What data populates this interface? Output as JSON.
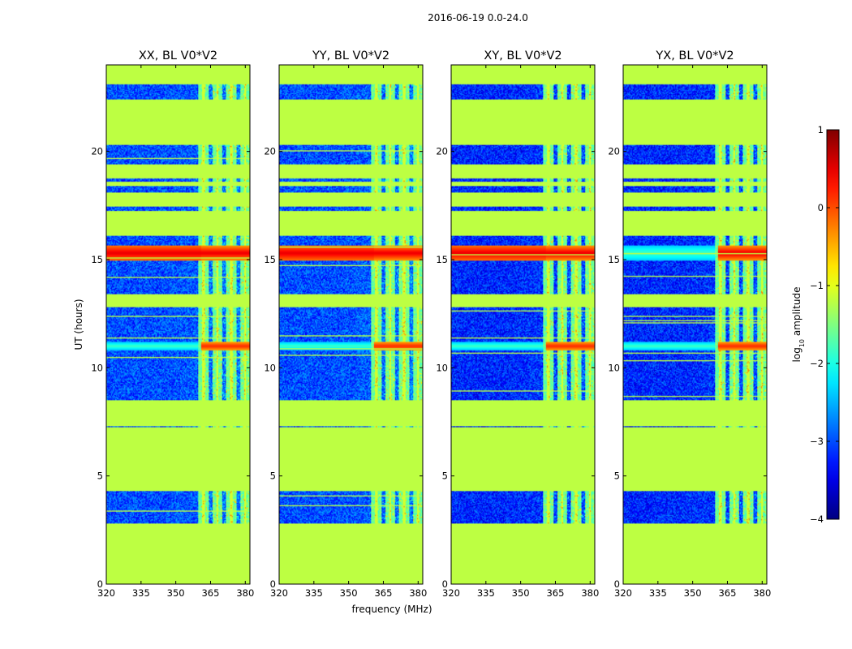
{
  "chart_data": {
    "type": "heatmap",
    "suptitle": "2016-06-19 0.0-24.0",
    "xlabel": "frequency (MHz)",
    "ylabel": "UT (hours)",
    "xlim": [
      320,
      382
    ],
    "ylim": [
      0,
      24
    ],
    "xticks": [
      "320",
      "335",
      "350",
      "365",
      "380"
    ],
    "yticks": [
      "0",
      "5",
      "10",
      "15",
      "20"
    ],
    "panels": [
      {
        "title": "XX, BL V0*V2",
        "pol": "XX"
      },
      {
        "title": "YY, BL V0*V2",
        "pol": "YY"
      },
      {
        "title": "XY, BL V0*V2",
        "pol": "XY"
      },
      {
        "title": "YX, BL V0*V2",
        "pol": "YX"
      }
    ],
    "colorbar": {
      "label_prefix": "log",
      "label_sub": "10",
      "label_suffix": " amplitude",
      "range": [
        -4,
        1
      ],
      "ticks": [
        "1",
        "0",
        "−1",
        "−2",
        "−3",
        "−4"
      ],
      "colormap": "jet"
    },
    "flagged_value": -1.2,
    "data_segments_ut": [
      {
        "start": 2.8,
        "end": 4.3
      },
      {
        "start": 7.25,
        "end": 7.32
      },
      {
        "start": 8.5,
        "end": 12.8
      },
      {
        "start": 13.4,
        "end": 16.1
      },
      {
        "start": 17.25,
        "end": 17.45
      },
      {
        "start": 18.1,
        "end": 18.4
      },
      {
        "start": 18.6,
        "end": 18.75
      },
      {
        "start": 19.4,
        "end": 20.3
      },
      {
        "start": 22.4,
        "end": 23.1
      }
    ],
    "rfi_channels_mhz": [
      362,
      368,
      374,
      380
    ],
    "strong_events_ut": [
      {
        "center": 15.3,
        "width": 0.35,
        "peak": 0.9
      },
      {
        "center": 11.0,
        "width": 0.18,
        "peak": 0.6
      }
    ]
  }
}
